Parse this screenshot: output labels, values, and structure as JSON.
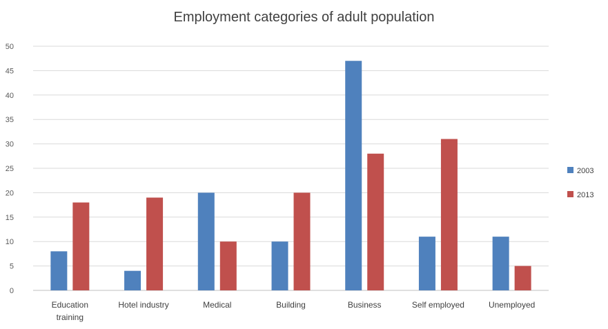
{
  "chart_data": {
    "type": "bar",
    "title": "Employment categories of adult population",
    "categories": [
      "Education training",
      "Hotel industry",
      "Medical",
      "Building",
      "Business",
      "Self employed",
      "Unemployed"
    ],
    "category_lines": [
      [
        "Education",
        "training"
      ],
      [
        "Hotel industry"
      ],
      [
        "Medical"
      ],
      [
        "Building"
      ],
      [
        "Business"
      ],
      [
        "Self employed"
      ],
      [
        "Unemployed"
      ]
    ],
    "series": [
      {
        "name": "2003",
        "color": "#4f81bd",
        "values": [
          8,
          4,
          20,
          10,
          47,
          11,
          11
        ]
      },
      {
        "name": "2013",
        "color": "#c0504d",
        "values": [
          18,
          19,
          10,
          20,
          28,
          31,
          5
        ]
      }
    ],
    "yticks": [
      "0",
      "5",
      "10",
      "15",
      "20",
      "25",
      "30",
      "35",
      "40",
      "45",
      "50"
    ],
    "ylim": [
      0,
      50
    ],
    "grid": true,
    "legend_position": "right"
  }
}
